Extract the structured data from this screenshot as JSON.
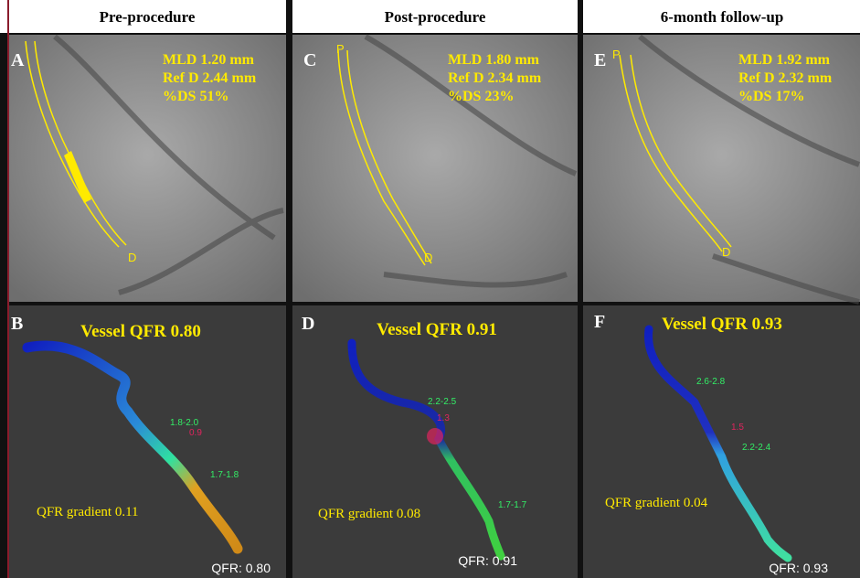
{
  "panels": [
    {
      "header": "Pre-procedure",
      "top_letter": "A",
      "top_markers": [
        "D"
      ],
      "measurements": [
        "MLD 1.20 mm",
        "Ref D 2.44 mm",
        "%DS 51%"
      ],
      "bottom_letter": "B",
      "vessel_qfr": "Vessel QFR 0.80",
      "segment_labels": [
        "1.8-2.0",
        "0.9",
        "1.7-1.8"
      ],
      "gradient": "QFR gradient 0.11",
      "final_qfr": "QFR: 0.80"
    },
    {
      "header": "Post-procedure",
      "top_letter": "C",
      "top_markers": [
        "P",
        "D"
      ],
      "measurements": [
        "MLD 1.80 mm",
        "Ref D 2.34 mm",
        "%DS 23%"
      ],
      "bottom_letter": "D",
      "vessel_qfr": "Vessel QFR 0.91",
      "segment_labels": [
        "2.2-2.5",
        "1.3",
        "1.7-1.7"
      ],
      "gradient": "QFR gradient 0.08",
      "final_qfr": "QFR: 0.91"
    },
    {
      "header": "6-month follow-up",
      "top_letter": "E",
      "top_markers": [
        "P",
        "D"
      ],
      "measurements": [
        "MLD 1.92 mm",
        "Ref D 2.32 mm",
        "%DS 17%"
      ],
      "bottom_letter": "F",
      "vessel_qfr": "Vessel QFR 0.93",
      "segment_labels": [
        "2.6-2.8",
        "1.5",
        "2.2-2.4"
      ],
      "gradient": "QFR gradient 0.04",
      "final_qfr": "QFR: 0.93"
    }
  ]
}
